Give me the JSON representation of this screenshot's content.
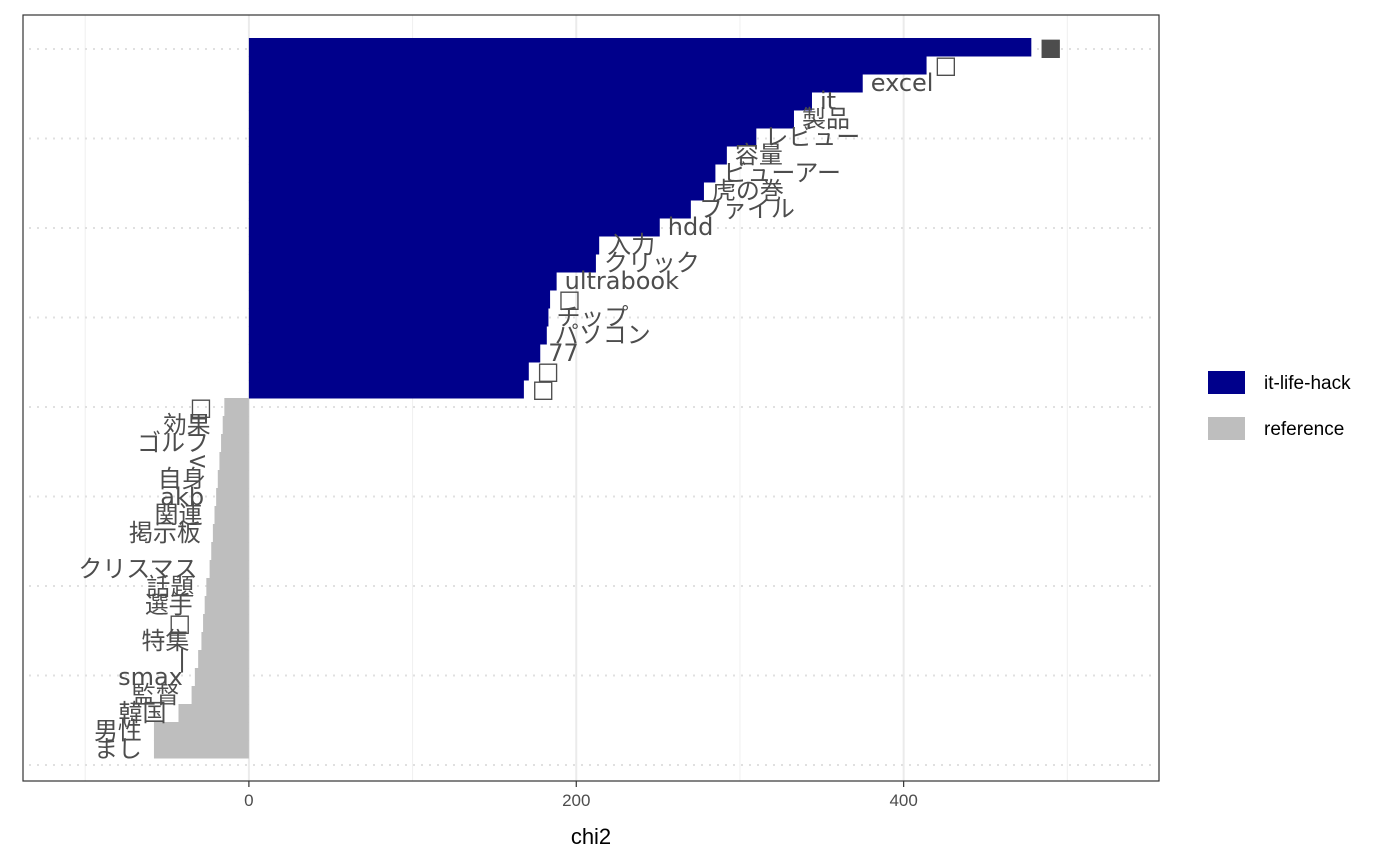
{
  "chart_data": {
    "type": "bar",
    "orientation": "horizontal",
    "xlabel": "chi2",
    "ylabel": "",
    "xlim": [
      -138,
      556
    ],
    "x_ticks": [
      0,
      200,
      400
    ],
    "x_tick_labels": [
      "0",
      "200",
      "400"
    ],
    "grid": true,
    "legend_position": "right",
    "series": [
      {
        "name": "it-life-hack",
        "color": "#00008B",
        "bars": [
          {
            "label": "■",
            "value": 478
          },
          {
            "label": "□",
            "value": 414
          },
          {
            "label": "excel",
            "value": 375
          },
          {
            "label": "it",
            "value": 344
          },
          {
            "label": "製品",
            "value": 333
          },
          {
            "label": "レビュー",
            "value": 310
          },
          {
            "label": "容量",
            "value": 292
          },
          {
            "label": "ビューアー",
            "value": 285
          },
          {
            "label": "虎の巻",
            "value": 278
          },
          {
            "label": "ファイル",
            "value": 270
          },
          {
            "label": "hdd",
            "value": 251
          },
          {
            "label": "入力",
            "value": 214
          },
          {
            "label": "クリック",
            "value": 212
          },
          {
            "label": "ultrabook",
            "value": 188
          },
          {
            "label": "□",
            "value": 184
          },
          {
            "label": "チップ",
            "value": 183
          },
          {
            "label": "パソコン",
            "value": 182
          },
          {
            "label": "77",
            "value": 178
          },
          {
            "label": "□",
            "value": 171
          },
          {
            "label": "□",
            "value": 168
          }
        ]
      },
      {
        "name": "reference",
        "color": "#BEBEBE",
        "bars": [
          {
            "label": "□",
            "value": -15
          },
          {
            "label": "効果",
            "value": -16
          },
          {
            "label": "ゴルフ",
            "value": -17
          },
          {
            "label": "<",
            "value": -18
          },
          {
            "label": "自身",
            "value": -19
          },
          {
            "label": "akb",
            "value": -20
          },
          {
            "label": "関連",
            "value": -21
          },
          {
            "label": "掲示板",
            "value": -22
          },
          {
            "label": "",
            "value": -23
          },
          {
            "label": "クリスマス",
            "value": -24
          },
          {
            "label": "話題",
            "value": -26
          },
          {
            "label": "選手",
            "value": -27
          },
          {
            "label": "□",
            "value": -28
          },
          {
            "label": "特集",
            "value": -29
          },
          {
            "label": "|",
            "value": -31
          },
          {
            "label": "smax",
            "value": -33
          },
          {
            "label": "監督",
            "value": -35
          },
          {
            "label": "韓国",
            "value": -43
          },
          {
            "label": "男性",
            "value": -58
          },
          {
            "label": "まし",
            "value": -58
          }
        ]
      }
    ]
  }
}
